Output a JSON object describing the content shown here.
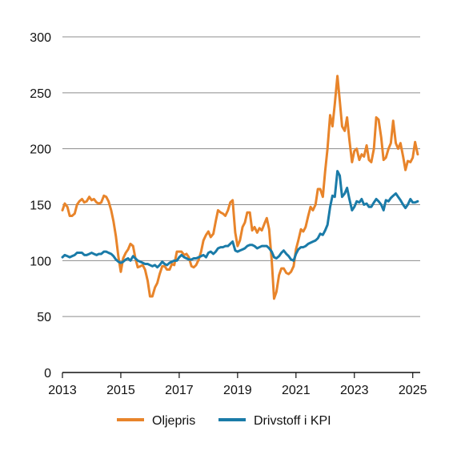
{
  "chart_data": {
    "type": "line",
    "title": "",
    "xlabel": "",
    "ylabel": "",
    "xlim": [
      2013,
      2025.2
    ],
    "ylim": [
      0,
      300
    ],
    "x_ticks": [
      "2013",
      "2015",
      "2017",
      "2019",
      "2021",
      "2023",
      "2025"
    ],
    "y_ticks": [
      "0",
      "50",
      "100",
      "150",
      "200",
      "250",
      "300"
    ],
    "grid": "horizontal",
    "legend_position": "bottom",
    "series": [
      {
        "name": "Oljepris",
        "color": "#E8842A",
        "points": [
          [
            2013.0,
            145
          ],
          [
            2013.08,
            151
          ],
          [
            2013.17,
            148
          ],
          [
            2013.25,
            140
          ],
          [
            2013.33,
            140
          ],
          [
            2013.42,
            142
          ],
          [
            2013.5,
            150
          ],
          [
            2013.58,
            153
          ],
          [
            2013.67,
            155
          ],
          [
            2013.75,
            152
          ],
          [
            2013.83,
            153
          ],
          [
            2013.92,
            157
          ],
          [
            2014.0,
            154
          ],
          [
            2014.08,
            155
          ],
          [
            2014.17,
            152
          ],
          [
            2014.25,
            151
          ],
          [
            2014.33,
            152
          ],
          [
            2014.42,
            158
          ],
          [
            2014.5,
            157
          ],
          [
            2014.58,
            153
          ],
          [
            2014.67,
            145
          ],
          [
            2014.75,
            135
          ],
          [
            2014.83,
            122
          ],
          [
            2014.92,
            103
          ],
          [
            2015.0,
            90
          ],
          [
            2015.08,
            102
          ],
          [
            2015.17,
            107
          ],
          [
            2015.25,
            110
          ],
          [
            2015.33,
            115
          ],
          [
            2015.42,
            113
          ],
          [
            2015.5,
            102
          ],
          [
            2015.58,
            94
          ],
          [
            2015.67,
            95
          ],
          [
            2015.75,
            96
          ],
          [
            2015.83,
            92
          ],
          [
            2015.92,
            82
          ],
          [
            2016.0,
            68
          ],
          [
            2016.08,
            68
          ],
          [
            2016.17,
            76
          ],
          [
            2016.25,
            80
          ],
          [
            2016.33,
            88
          ],
          [
            2016.42,
            95
          ],
          [
            2016.5,
            95
          ],
          [
            2016.58,
            92
          ],
          [
            2016.67,
            92
          ],
          [
            2016.75,
            97
          ],
          [
            2016.83,
            96
          ],
          [
            2016.92,
            108
          ],
          [
            2017.0,
            108
          ],
          [
            2017.08,
            108
          ],
          [
            2017.17,
            105
          ],
          [
            2017.25,
            106
          ],
          [
            2017.33,
            103
          ],
          [
            2017.42,
            95
          ],
          [
            2017.5,
            94
          ],
          [
            2017.58,
            96
          ],
          [
            2017.67,
            101
          ],
          [
            2017.75,
            108
          ],
          [
            2017.83,
            118
          ],
          [
            2017.92,
            123
          ],
          [
            2018.0,
            126
          ],
          [
            2018.08,
            121
          ],
          [
            2018.17,
            124
          ],
          [
            2018.25,
            135
          ],
          [
            2018.33,
            145
          ],
          [
            2018.42,
            143
          ],
          [
            2018.5,
            142
          ],
          [
            2018.58,
            140
          ],
          [
            2018.67,
            145
          ],
          [
            2018.75,
            152
          ],
          [
            2018.83,
            154
          ],
          [
            2018.92,
            125
          ],
          [
            2019.0,
            113
          ],
          [
            2019.08,
            118
          ],
          [
            2019.17,
            130
          ],
          [
            2019.25,
            134
          ],
          [
            2019.33,
            143
          ],
          [
            2019.42,
            143
          ],
          [
            2019.5,
            127
          ],
          [
            2019.58,
            130
          ],
          [
            2019.67,
            125
          ],
          [
            2019.75,
            129
          ],
          [
            2019.83,
            127
          ],
          [
            2019.92,
            133
          ],
          [
            2020.0,
            138
          ],
          [
            2020.08,
            128
          ],
          [
            2020.17,
            100
          ],
          [
            2020.25,
            66
          ],
          [
            2020.33,
            72
          ],
          [
            2020.42,
            87
          ],
          [
            2020.5,
            93
          ],
          [
            2020.58,
            93
          ],
          [
            2020.67,
            89
          ],
          [
            2020.75,
            88
          ],
          [
            2020.83,
            90
          ],
          [
            2020.92,
            95
          ],
          [
            2021.0,
            110
          ],
          [
            2021.08,
            118
          ],
          [
            2021.17,
            128
          ],
          [
            2021.25,
            126
          ],
          [
            2021.33,
            130
          ],
          [
            2021.42,
            140
          ],
          [
            2021.5,
            148
          ],
          [
            2021.58,
            145
          ],
          [
            2021.67,
            150
          ],
          [
            2021.75,
            164
          ],
          [
            2021.83,
            164
          ],
          [
            2021.92,
            157
          ],
          [
            2022.0,
            180
          ],
          [
            2022.08,
            200
          ],
          [
            2022.17,
            230
          ],
          [
            2022.25,
            220
          ],
          [
            2022.33,
            240
          ],
          [
            2022.42,
            265
          ],
          [
            2022.5,
            243
          ],
          [
            2022.58,
            220
          ],
          [
            2022.67,
            216
          ],
          [
            2022.75,
            228
          ],
          [
            2022.83,
            208
          ],
          [
            2022.92,
            188
          ],
          [
            2023.0,
            198
          ],
          [
            2023.08,
            200
          ],
          [
            2023.17,
            190
          ],
          [
            2023.25,
            195
          ],
          [
            2023.33,
            193
          ],
          [
            2023.42,
            203
          ],
          [
            2023.5,
            190
          ],
          [
            2023.58,
            188
          ],
          [
            2023.67,
            200
          ],
          [
            2023.75,
            228
          ],
          [
            2023.83,
            226
          ],
          [
            2023.92,
            210
          ],
          [
            2024.0,
            190
          ],
          [
            2024.08,
            192
          ],
          [
            2024.17,
            200
          ],
          [
            2024.25,
            205
          ],
          [
            2024.33,
            225
          ],
          [
            2024.42,
            205
          ],
          [
            2024.5,
            200
          ],
          [
            2024.58,
            205
          ],
          [
            2024.67,
            193
          ],
          [
            2024.75,
            181
          ],
          [
            2024.83,
            189
          ],
          [
            2024.92,
            188
          ],
          [
            2025.0,
            192
          ],
          [
            2025.08,
            206
          ],
          [
            2025.17,
            195
          ]
        ]
      },
      {
        "name": "Drivstoff i KPI",
        "color": "#1A7BA8",
        "points": [
          [
            2013.0,
            103
          ],
          [
            2013.08,
            105
          ],
          [
            2013.17,
            104
          ],
          [
            2013.25,
            103
          ],
          [
            2013.33,
            104
          ],
          [
            2013.42,
            105
          ],
          [
            2013.5,
            107
          ],
          [
            2013.58,
            107
          ],
          [
            2013.67,
            107
          ],
          [
            2013.75,
            105
          ],
          [
            2013.83,
            105
          ],
          [
            2013.92,
            106
          ],
          [
            2014.0,
            107
          ],
          [
            2014.08,
            106
          ],
          [
            2014.17,
            105
          ],
          [
            2014.25,
            106
          ],
          [
            2014.33,
            106
          ],
          [
            2014.42,
            108
          ],
          [
            2014.5,
            108
          ],
          [
            2014.58,
            107
          ],
          [
            2014.67,
            106
          ],
          [
            2014.75,
            104
          ],
          [
            2014.83,
            101
          ],
          [
            2014.92,
            99
          ],
          [
            2015.0,
            98
          ],
          [
            2015.08,
            99
          ],
          [
            2015.17,
            101
          ],
          [
            2015.25,
            102
          ],
          [
            2015.33,
            100
          ],
          [
            2015.42,
            104
          ],
          [
            2015.5,
            102
          ],
          [
            2015.58,
            100
          ],
          [
            2015.67,
            99
          ],
          [
            2015.75,
            98
          ],
          [
            2015.83,
            97
          ],
          [
            2015.92,
            97
          ],
          [
            2016.0,
            96
          ],
          [
            2016.08,
            95
          ],
          [
            2016.17,
            96
          ],
          [
            2016.25,
            94
          ],
          [
            2016.33,
            96
          ],
          [
            2016.42,
            99
          ],
          [
            2016.5,
            97
          ],
          [
            2016.58,
            96
          ],
          [
            2016.67,
            98
          ],
          [
            2016.75,
            99
          ],
          [
            2016.83,
            100
          ],
          [
            2016.92,
            100
          ],
          [
            2017.0,
            103
          ],
          [
            2017.08,
            105
          ],
          [
            2017.17,
            103
          ],
          [
            2017.25,
            102
          ],
          [
            2017.33,
            101
          ],
          [
            2017.42,
            101
          ],
          [
            2017.5,
            102
          ],
          [
            2017.58,
            102
          ],
          [
            2017.67,
            103
          ],
          [
            2017.75,
            104
          ],
          [
            2017.83,
            105
          ],
          [
            2017.92,
            103
          ],
          [
            2018.0,
            107
          ],
          [
            2018.08,
            108
          ],
          [
            2018.17,
            106
          ],
          [
            2018.25,
            108
          ],
          [
            2018.33,
            111
          ],
          [
            2018.42,
            112
          ],
          [
            2018.5,
            112
          ],
          [
            2018.58,
            113
          ],
          [
            2018.67,
            113
          ],
          [
            2018.75,
            115
          ],
          [
            2018.83,
            117
          ],
          [
            2018.92,
            109
          ],
          [
            2019.0,
            108
          ],
          [
            2019.08,
            109
          ],
          [
            2019.17,
            110
          ],
          [
            2019.25,
            111
          ],
          [
            2019.33,
            113
          ],
          [
            2019.42,
            114
          ],
          [
            2019.5,
            114
          ],
          [
            2019.58,
            113
          ],
          [
            2019.67,
            111
          ],
          [
            2019.75,
            112
          ],
          [
            2019.83,
            113
          ],
          [
            2019.92,
            113
          ],
          [
            2020.0,
            113
          ],
          [
            2020.08,
            111
          ],
          [
            2020.17,
            108
          ],
          [
            2020.25,
            103
          ],
          [
            2020.33,
            102
          ],
          [
            2020.42,
            104
          ],
          [
            2020.5,
            107
          ],
          [
            2020.58,
            109
          ],
          [
            2020.67,
            106
          ],
          [
            2020.75,
            104
          ],
          [
            2020.83,
            101
          ],
          [
            2020.92,
            100
          ],
          [
            2021.0,
            106
          ],
          [
            2021.08,
            110
          ],
          [
            2021.17,
            112
          ],
          [
            2021.25,
            112
          ],
          [
            2021.33,
            113
          ],
          [
            2021.42,
            115
          ],
          [
            2021.5,
            116
          ],
          [
            2021.58,
            117
          ],
          [
            2021.67,
            118
          ],
          [
            2021.75,
            120
          ],
          [
            2021.83,
            124
          ],
          [
            2021.92,
            123
          ],
          [
            2022.0,
            127
          ],
          [
            2022.08,
            132
          ],
          [
            2022.17,
            148
          ],
          [
            2022.25,
            158
          ],
          [
            2022.33,
            157
          ],
          [
            2022.42,
            180
          ],
          [
            2022.5,
            176
          ],
          [
            2022.58,
            157
          ],
          [
            2022.67,
            160
          ],
          [
            2022.75,
            165
          ],
          [
            2022.83,
            155
          ],
          [
            2022.92,
            145
          ],
          [
            2023.0,
            148
          ],
          [
            2023.08,
            153
          ],
          [
            2023.17,
            152
          ],
          [
            2023.25,
            155
          ],
          [
            2023.33,
            150
          ],
          [
            2023.42,
            151
          ],
          [
            2023.5,
            148
          ],
          [
            2023.58,
            148
          ],
          [
            2023.67,
            152
          ],
          [
            2023.75,
            155
          ],
          [
            2023.83,
            153
          ],
          [
            2023.92,
            150
          ],
          [
            2024.0,
            145
          ],
          [
            2024.08,
            154
          ],
          [
            2024.17,
            153
          ],
          [
            2024.25,
            156
          ],
          [
            2024.33,
            158
          ],
          [
            2024.42,
            160
          ],
          [
            2024.5,
            157
          ],
          [
            2024.58,
            154
          ],
          [
            2024.67,
            150
          ],
          [
            2024.75,
            147
          ],
          [
            2024.83,
            150
          ],
          [
            2024.92,
            155
          ],
          [
            2025.0,
            152
          ],
          [
            2025.08,
            152
          ],
          [
            2025.17,
            153
          ]
        ]
      }
    ]
  }
}
